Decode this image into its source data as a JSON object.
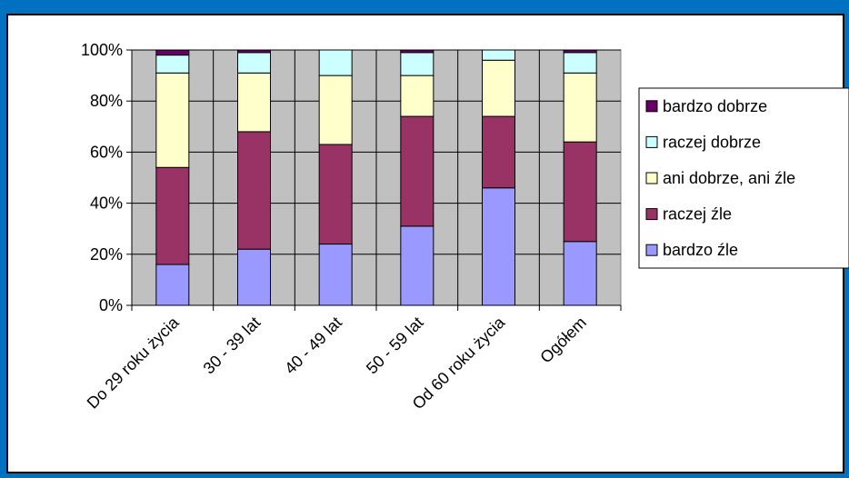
{
  "chart_data": {
    "type": "bar",
    "stacked": true,
    "percent": true,
    "categories": [
      "Do 29 roku życia",
      "30 - 39 lat",
      "40 - 49 lat",
      "50 - 59 lat",
      "Od 60 roku życia",
      "Ogółem"
    ],
    "series": [
      {
        "name": "bardzo źle",
        "color": "#9999FF",
        "values": [
          16,
          22,
          24,
          31,
          46,
          25
        ]
      },
      {
        "name": "raczej źle",
        "color": "#993366",
        "values": [
          38,
          46,
          39,
          43,
          28,
          39
        ]
      },
      {
        "name": "ani dobrze, ani źle",
        "color": "#FFFFCC",
        "values": [
          37,
          23,
          27,
          16,
          22,
          27
        ]
      },
      {
        "name": "raczej dobrze",
        "color": "#CCFFFF",
        "values": [
          7,
          8,
          10,
          9,
          4,
          8
        ]
      },
      {
        "name": "bardzo dobrze",
        "color": "#660066",
        "values": [
          2,
          1,
          0,
          1,
          0,
          1
        ]
      }
    ],
    "yticks": [
      "0%",
      "20%",
      "40%",
      "60%",
      "80%",
      "100%"
    ],
    "ylim": [
      0,
      100
    ],
    "grid": true,
    "plot_background": "#C0C0C0",
    "legend_order": [
      "bardzo dobrze",
      "raczej dobrze",
      "ani dobrze, ani źle",
      "raczej źle",
      "bardzo źle"
    ],
    "legend_position": "right"
  }
}
